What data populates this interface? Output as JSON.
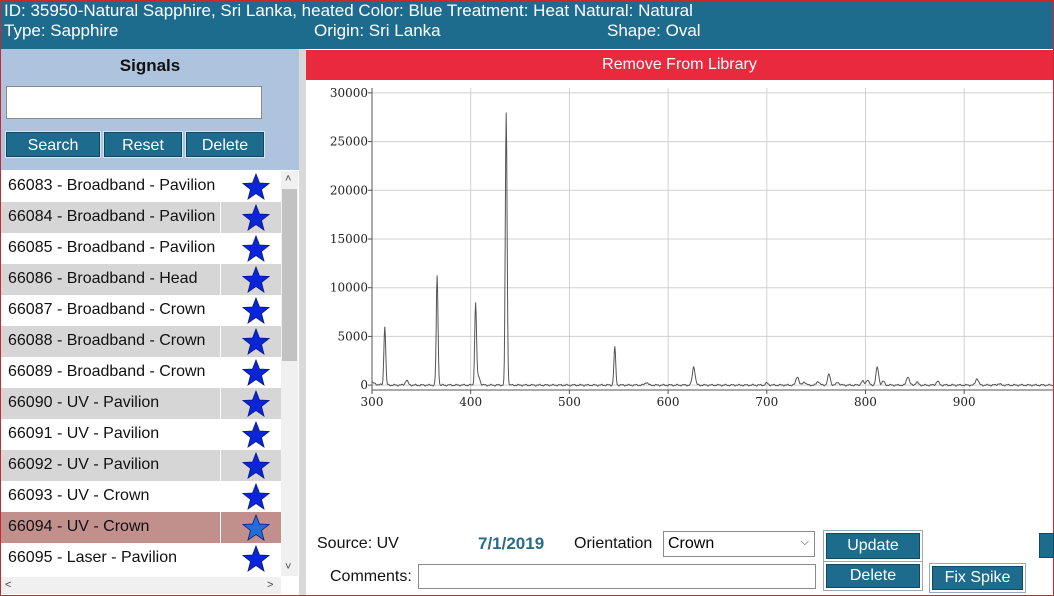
{
  "header": {
    "line1": "ID: 35950-Natural Sapphire, Sri Lanka, heated Color: Blue Treatment: Heat Natural: Natural",
    "type": "Type: Sapphire",
    "origin": "Origin: Sri Lanka",
    "shape": "Shape: Oval"
  },
  "signals": {
    "title": "Signals",
    "search_value": "",
    "buttons": {
      "search": "Search",
      "reset": "Reset",
      "delete": "Delete"
    },
    "items": [
      {
        "label": "66083 - Broadband - Pavilion",
        "starred": true
      },
      {
        "label": "66084 - Broadband - Pavilion",
        "starred": true
      },
      {
        "label": "66085 - Broadband - Pavilion",
        "starred": true
      },
      {
        "label": "66086 - Broadband - Head",
        "starred": true
      },
      {
        "label": "66087 - Broadband - Crown",
        "starred": true
      },
      {
        "label": "66088 - Broadband - Crown",
        "starred": true
      },
      {
        "label": "66089 - Broadband - Crown",
        "starred": true
      },
      {
        "label": "66090 - UV - Pavilion",
        "starred": true
      },
      {
        "label": "66091 - UV - Pavilion",
        "starred": true
      },
      {
        "label": "66092 - UV - Pavilion",
        "starred": true
      },
      {
        "label": "66093 - UV - Crown",
        "starred": true
      },
      {
        "label": "66094 - UV - Crown",
        "starred": true,
        "selected": true
      },
      {
        "label": "66095 - Laser - Pavilion",
        "starred": true
      }
    ],
    "star_icon": "star-icon",
    "star_color": "#0a24d8",
    "star_selected_color": "#1f6fd6"
  },
  "remove_button": "Remove From Library",
  "chart_data": {
    "type": "line",
    "xlim": [
      300,
      990
    ],
    "ylim": [
      -500,
      30500
    ],
    "x_ticks": [
      300,
      400,
      500,
      600,
      700,
      800,
      900
    ],
    "y_ticks": [
      0,
      5000,
      10000,
      15000,
      20000,
      25000,
      30000
    ],
    "grid": true,
    "baseline": 0,
    "peaks": [
      {
        "x": 313,
        "y": 6100
      },
      {
        "x": 335,
        "y": 500
      },
      {
        "x": 366,
        "y": 11200
      },
      {
        "x": 405,
        "y": 8400
      },
      {
        "x": 408,
        "y": 900
      },
      {
        "x": 436,
        "y": 28000
      },
      {
        "x": 546,
        "y": 3900
      },
      {
        "x": 578,
        "y": 300
      },
      {
        "x": 626,
        "y": 1900
      },
      {
        "x": 700,
        "y": 200
      },
      {
        "x": 731,
        "y": 900
      },
      {
        "x": 738,
        "y": 350
      },
      {
        "x": 752,
        "y": 400
      },
      {
        "x": 763,
        "y": 1100
      },
      {
        "x": 772,
        "y": 300
      },
      {
        "x": 797,
        "y": 400
      },
      {
        "x": 802,
        "y": 550
      },
      {
        "x": 812,
        "y": 1800
      },
      {
        "x": 818,
        "y": 400
      },
      {
        "x": 843,
        "y": 900
      },
      {
        "x": 852,
        "y": 300
      },
      {
        "x": 873,
        "y": 400
      },
      {
        "x": 913,
        "y": 700
      },
      {
        "x": 935,
        "y": 150
      }
    ],
    "line_color": "#555555"
  },
  "details": {
    "source": "Source: UV",
    "date": "7/1/2019",
    "orientation_label": "Orientation",
    "orientation_value": "Crown",
    "comments_label": "Comments:",
    "comments_value": "",
    "buttons": {
      "update": "Update",
      "delete": "Delete",
      "fix_spike": "Fix Spike"
    }
  }
}
